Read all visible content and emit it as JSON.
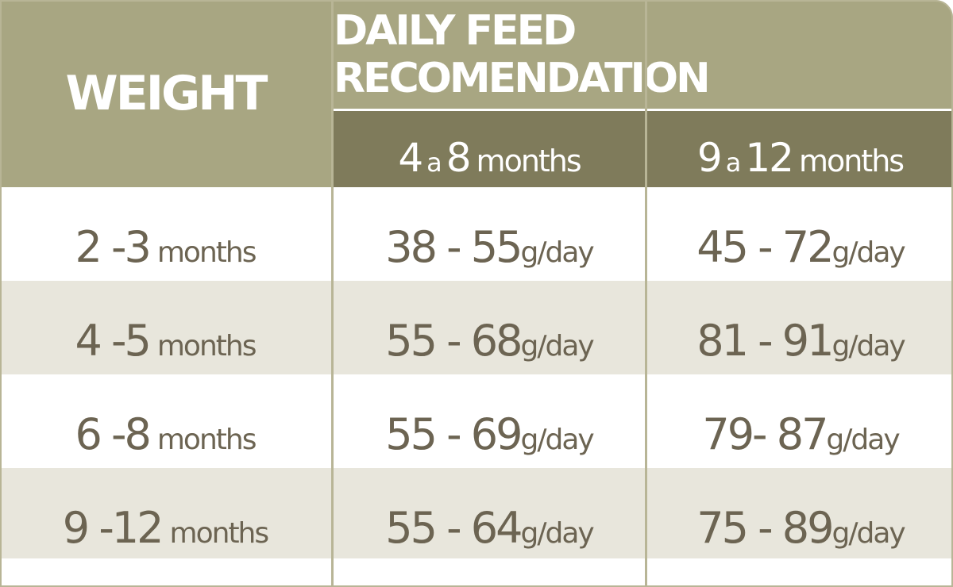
{
  "header": {
    "weight": "WEIGHT",
    "feed": "DAILY FEED RECOMENDATION",
    "col_a": {
      "from": "4",
      "sep": "a",
      "to": "8",
      "unit": "months"
    },
    "col_b": {
      "from": "9",
      "sep": "a",
      "to": "12",
      "unit": "months"
    }
  },
  "rows": [
    {
      "weight": "2 -3",
      "weight_unit": "months",
      "a": "38 - 55",
      "b": "45 - 72",
      "unit": "g/day"
    },
    {
      "weight": "4 -5",
      "weight_unit": "months",
      "a": "55 - 68",
      "b": "81 - 91",
      "unit": "g/day"
    },
    {
      "weight": "6 -8",
      "weight_unit": "months",
      "a": "55 - 69",
      "b": "79- 87",
      "unit": "g/day"
    },
    {
      "weight": "9 -12",
      "weight_unit": "months",
      "a": "55 - 64",
      "b": "75 - 89",
      "unit": "g/day"
    }
  ],
  "colors": {
    "header": "#a8a682",
    "subheader": "#7f7b5b",
    "text": "#6c6452",
    "alt_row": "#e8e6dc"
  }
}
